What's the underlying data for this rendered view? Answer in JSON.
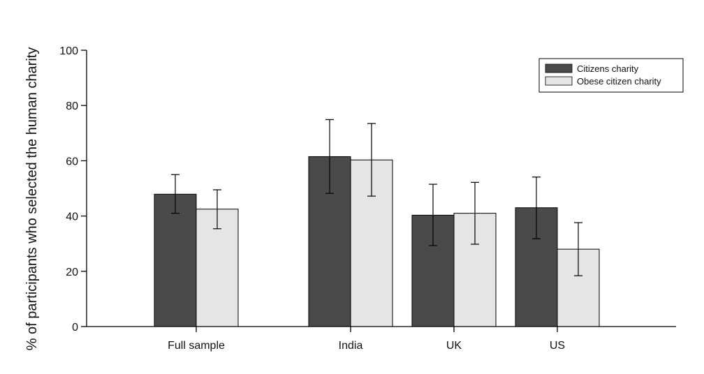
{
  "chart_data": {
    "type": "bar",
    "ylabel": "% of participants who selected the human charity",
    "xlabel": "",
    "ylim": [
      0,
      100
    ],
    "yticks": [
      0,
      20,
      40,
      60,
      80,
      100
    ],
    "categories": [
      "Full sample",
      "India",
      "UK",
      "US"
    ],
    "series": [
      {
        "name": "Citizens charity",
        "color": "#4a4a4a",
        "values": [
          47.9,
          61.5,
          40.3,
          43.0
        ],
        "err_low": [
          41.0,
          48.2,
          29.3,
          31.8
        ],
        "err_high": [
          55.0,
          74.9,
          51.5,
          54.1
        ]
      },
      {
        "name": "Obese citizen charity",
        "color": "#e5e5e5",
        "values": [
          42.5,
          60.3,
          41.0,
          28.0
        ],
        "err_low": [
          35.4,
          47.2,
          29.8,
          18.4
        ],
        "err_high": [
          49.5,
          73.5,
          52.2,
          37.6
        ]
      }
    ],
    "grid": false,
    "legend_position": "top-right"
  }
}
